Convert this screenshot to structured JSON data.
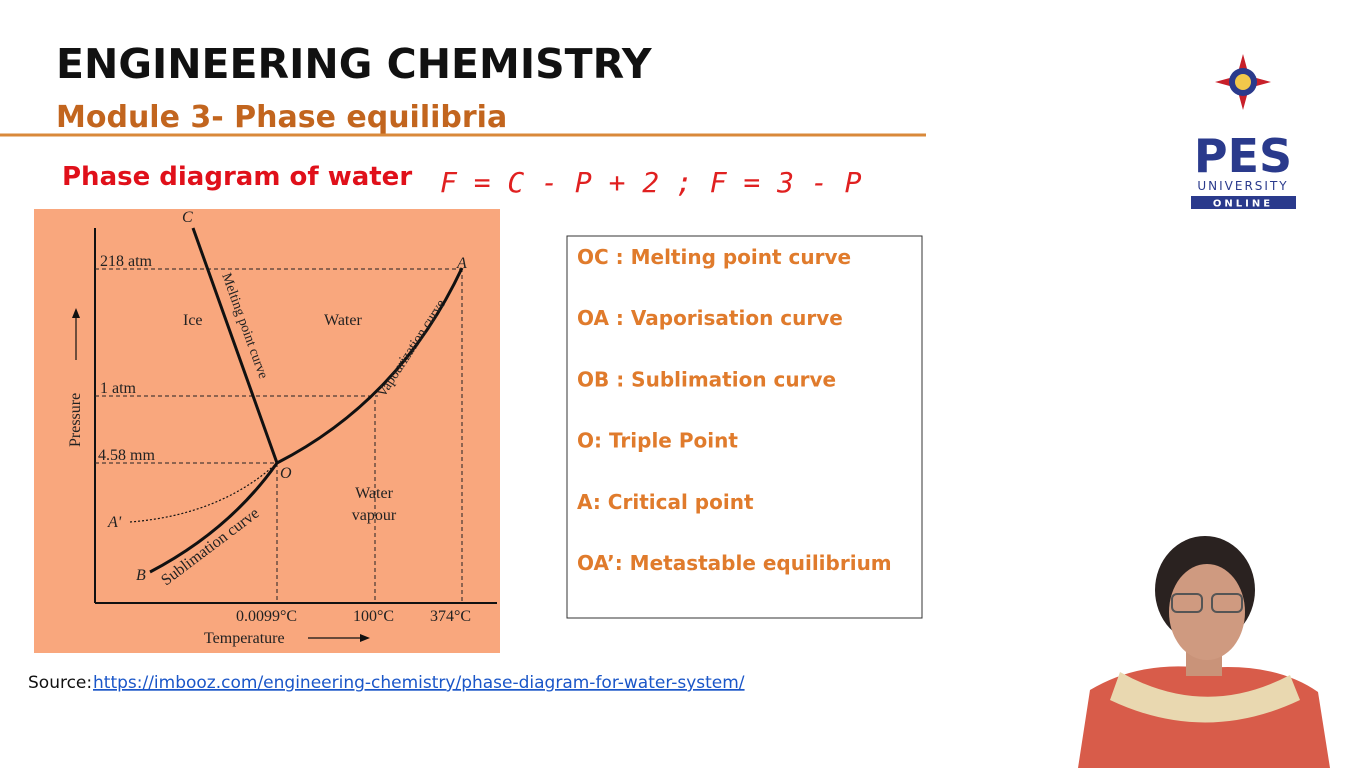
{
  "header": {
    "title": "ENGINEERING CHEMISTRY",
    "subtitle": "Module 3- Phase equilibria"
  },
  "logo": {
    "name": "PES",
    "line1": "UNIVERSITY",
    "line2": "ONLINE"
  },
  "section_title": "Phase diagram of water",
  "handwritten_note": "F = C - P + 2  ;  F = 3 - P",
  "diagram": {
    "point_c": "C",
    "point_a": "A",
    "point_o": "O",
    "point_a_prime": "A'",
    "point_b": "B",
    "pressure_218": "218 atm",
    "pressure_1": "1 atm",
    "pressure_458": "4.58 mm",
    "region_ice": "Ice",
    "region_water": "Water",
    "region_vapour": [
      "Water",
      "vapour"
    ],
    "curve_melting": "Melting point curve",
    "curve_vapour": "Vapourization curve",
    "curve_sublimation": "Sublimation curve",
    "y_axis": "Pressure",
    "x_axis": "Temperature",
    "temp_triple": "0.0099°C",
    "temp_boil": "100°C",
    "temp_critical": "374°C"
  },
  "definitions": [
    "OC : Melting point curve",
    "OA : Vaporisation curve",
    "OB : Sublimation curve",
    "O: Triple Point",
    "A: Critical point",
    "OA’: Metastable equilibrium"
  ],
  "source": {
    "label": "Source:",
    "url": "https://imbooz.com/engineering-chemistry/phase-diagram-for-water-system/"
  }
}
